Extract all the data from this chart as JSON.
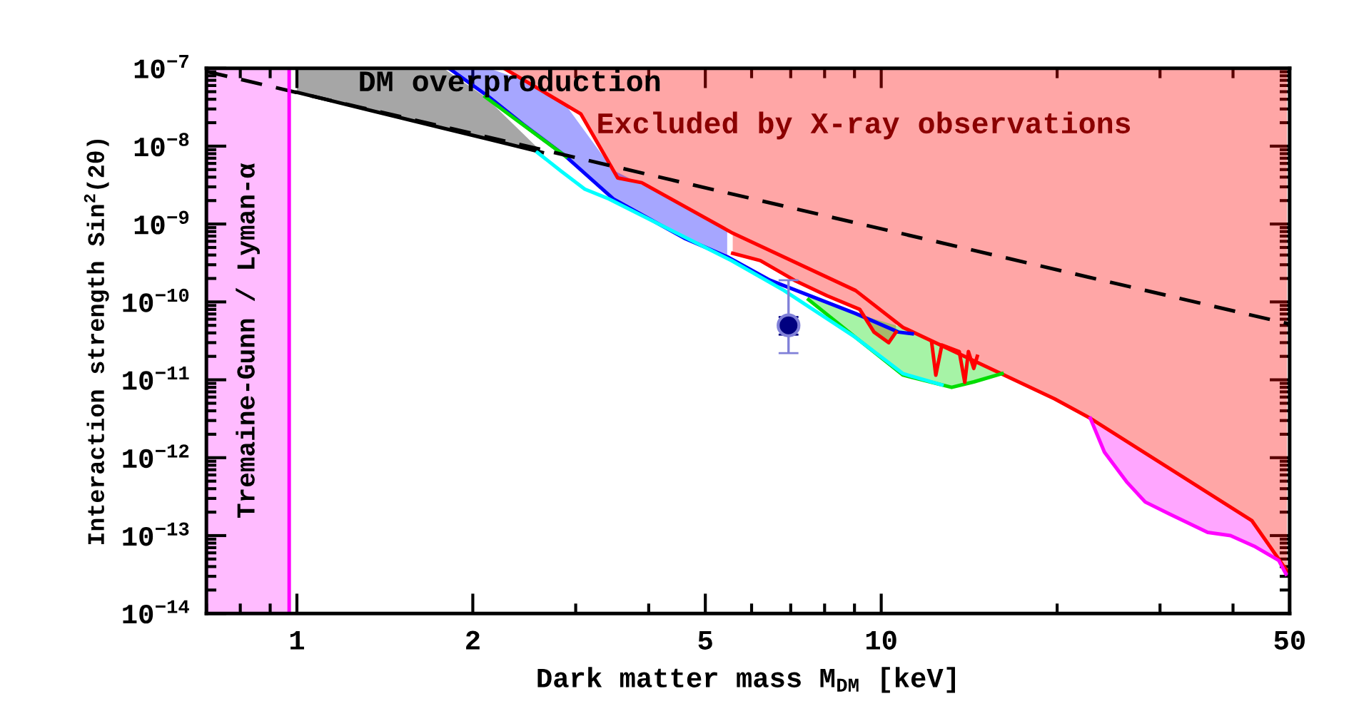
{
  "chart_data": {
    "type": "line",
    "xlabel": "Dark matter mass M$_{DM}$ [keV]",
    "ylabel": "Interaction strength Sin$^{2}$(2θ)",
    "log": "xy",
    "xlim": [
      0.7,
      50
    ],
    "ylim": [
      1e-14,
      1e-07
    ],
    "xticks": [
      1,
      2,
      5,
      10,
      50
    ],
    "yticks": [
      {
        "value": 1e-14,
        "label": "10$^{−14}$"
      },
      {
        "value": 1e-13,
        "label": "10$^{−13}$"
      },
      {
        "value": 1e-12,
        "label": "10$^{−12}$"
      },
      {
        "value": 1e-11,
        "label": "10$^{−11}$"
      },
      {
        "value": 1e-10,
        "label": "10$^{−10}$"
      },
      {
        "value": 1e-09,
        "label": "10$^{−9}$"
      },
      {
        "value": 1e-08,
        "label": "10$^{−8}$"
      },
      {
        "value": 1e-07,
        "label": "10$^{−7}$"
      }
    ],
    "bands": [
      {
        "axis": "x",
        "from": 0.7,
        "to": 0.97,
        "label": "Tremaine-Gunn / Lyman-α",
        "color": "#ffbbff"
      }
    ],
    "series": [
      {
        "color": "#ff0000",
        "x": [
          2.26,
          3.06,
          3.54,
          3.89,
          5.54,
          9.04,
          10.9,
          19.8,
          22.8,
          43.1,
          49.5
        ],
        "values": [
          1e-07,
          2.6e-08,
          3.9e-09,
          3.4e-09,
          7.8e-10,
          1.4e-10,
          4.7e-11,
          5.7e-12,
          3.2e-12,
          1.55e-13,
          3.5e-14
        ],
        "lower": [
          1e-07,
          2.6e-08,
          3.9e-09,
          3.4e-09,
          7.8e-10,
          1.4e-10,
          4.7e-11,
          5.7e-12,
          3.2e-12,
          1.55e-13,
          3.5e-14
        ],
        "upper": [
          1e-07,
          1e-07,
          1e-07,
          1e-07,
          1e-07,
          1e-07,
          1e-07,
          1e-07,
          1e-07,
          1e-07,
          1e-07
        ]
      },
      {
        "color": "#000000",
        "x": [
          1,
          1.78,
          2.1,
          2.63
        ],
        "values": [
          4.9e-08,
          1.7e-08,
          1.26e-08,
          8.3e-09
        ],
        "lower": [
          4.9e-08,
          1.7e-08,
          1.26e-08,
          8.3e-09
        ],
        "upper": [
          1e-07,
          1e-07,
          4.3e-08,
          8.3e-09
        ]
      },
      {
        "color": "#0000ff",
        "x": [
          1.82,
          2.13,
          2.44,
          2.89,
          3.48,
          4.6,
          5.45,
          6.45,
          9.04,
          10.7,
          11.3
        ],
        "values": [
          1e-07,
          4.3e-08,
          1.9e-08,
          7.3e-09,
          2.1e-09,
          6.6e-10,
          3.8e-10,
          1.9e-10,
          7.1e-11,
          4.1e-11,
          3.9e-11
        ],
        "lower": [
          1e-07,
          4.3e-08,
          1.9e-08,
          7.3e-09,
          2.1e-09,
          6.6e-10,
          3.8e-10,
          null,
          null,
          null,
          null
        ],
        "upper": [
          1e-07,
          1e-07,
          7e-08,
          3.3e-08,
          4.9e-09,
          1.7e-09,
          8.3e-10,
          null,
          null,
          null,
          null
        ]
      },
      {
        "color": "#ff0000",
        "x": [
          5.57,
          6.21,
          7.1,
          8.08,
          9.19,
          9.72,
          10.3,
          10.6
        ],
        "values": [
          4.2e-10,
          3.4e-10,
          1.9e-10,
          1.2e-10,
          8e-11,
          4.1e-11,
          3e-11,
          4.1e-11
        ],
        "lower": [
          4.2e-10,
          3.4e-10,
          1.9e-10,
          1.2e-10,
          8e-11,
          4.1e-11,
          3e-11,
          4.1e-11
        ],
        "upper": [
          7.8e-10,
          5.2e-10,
          3.3e-10,
          2.1e-10,
          1.3e-10,
          9.1e-11,
          6.6e-11,
          5.5e-11
        ]
      },
      {
        "color": "#00dd00",
        "x": [
          7.51,
          9.04,
          10.9,
          13.2,
          14.4,
          16.1
        ],
        "values": [
          1.07e-10,
          3.5e-11,
          1.15e-11,
          8e-12,
          9.4e-12,
          1.2e-11
        ],
        "lower": [
          1.07e-10,
          3.5e-11,
          1.15e-11,
          8e-12,
          9.4e-12,
          1.2e-11
        ],
        "upper": [
          1.2e-10,
          7.1e-11,
          4.7e-11,
          2.4e-11,
          1.7e-11,
          1.2e-11
        ]
      },
      {
        "color": "#ff00ff",
        "x": [
          22.8,
          24.1,
          26.3,
          28.3,
          31.1,
          36.2,
          39.6,
          43.5,
          47.9,
          49.3
        ],
        "values": [
          3.2e-12,
          1.18e-12,
          4.9e-13,
          2.7e-13,
          1.9e-13,
          1.1e-13,
          1e-13,
          7.3e-14,
          4.8e-14,
          3.2e-14
        ],
        "lower": [
          3.2e-12,
          1.18e-12,
          4.9e-13,
          2.7e-13,
          1.9e-13,
          1.1e-13,
          1e-13,
          7.3e-14,
          4.8e-14,
          3.2e-14
        ],
        "upper": [
          3.2e-12,
          2.5e-12,
          1.7e-12,
          1.2e-12,
          7.4e-13,
          3.6e-13,
          2.3e-13,
          1.5e-13,
          5.1e-14,
          3.5e-14
        ]
      },
      {
        "color": "#00ffff",
        "x": [
          2.58,
          2.83,
          3.11,
          3.42,
          5.54,
          6.82,
          9.04,
          10.9,
          12.7
        ],
        "values": [
          8.3e-09,
          4.8e-09,
          2.8e-09,
          2.1e-09,
          3.4e-10,
          1.4e-10,
          3.5e-11,
          1.2e-11,
          8.6e-12
        ]
      },
      {
        "color": "#00dd00",
        "x": [
          2.1,
          2.89
        ],
        "values": [
          4.3e-08,
          7.3e-09
        ]
      },
      {
        "color": "#ff0000",
        "x": [
          12.2,
          12.4,
          12.7,
          13.6,
          13.9,
          14.1,
          14.4,
          14.6
        ],
        "values": [
          3e-11,
          1.15e-11,
          2.8e-11,
          2.3e-11,
          9.3e-12,
          2.3e-11,
          1.4e-11,
          2e-11
        ]
      },
      {
        "color": "#000000",
        "line_style": "dashed",
        "x": [
          0.7,
          50
        ],
        "values": [
          9.1e-08,
          5.2e-11
        ]
      },
      {
        "color": "#ff00ff",
        "x": [
          0.97,
          0.97
        ],
        "values": [
          1e-14,
          1e-07
        ]
      },
      {
        "type": "scatter",
        "color": "#8080d8",
        "x": [
          6.94
        ],
        "values": [
          5e-11
        ],
        "errors": [
          [
            2.2e-11,
            1.9e-10
          ]
        ]
      },
      {
        "type": "scatter",
        "color": "#000080",
        "x": [
          6.94
        ],
        "values": [
          5e-11
        ],
        "errors": [
          [
            3.8e-11,
            6.4e-11
          ]
        ]
      }
    ],
    "annotations": [
      "DM overproduction",
      "Excluded by X-ray observations"
    ]
  }
}
